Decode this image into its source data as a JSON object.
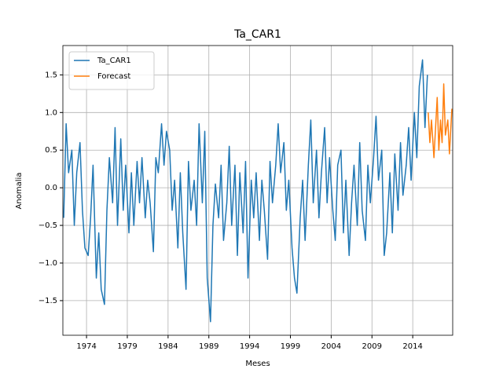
{
  "chart_data": {
    "type": "line",
    "title": "Ta_CAR1",
    "x_label": "Meses",
    "y_label": "Anomalia",
    "xlim": [
      1971.1,
      2018.9
    ],
    "xticks": [
      1974,
      1979,
      1984,
      1989,
      1994,
      1999,
      2004,
      2009,
      2014
    ],
    "ylim": [
      -1.96,
      1.89
    ],
    "yticks": [
      {
        "value": -1.5,
        "label": "−1.5"
      },
      {
        "value": -1.0,
        "label": "−1.0"
      },
      {
        "value": -0.5,
        "label": "−0.5"
      },
      {
        "value": 0.0,
        "label": "0.0"
      },
      0.5,
      {
        "value": 1.0,
        "label": "1.0"
      },
      1.5
    ],
    "grid": true,
    "legend": "upper left",
    "series": [
      {
        "name": "Ta_CAR1",
        "color": "#1f77b4",
        "x": [
          1971.2,
          1971.5,
          1971.8,
          1972.2,
          1972.5,
          1972.8,
          1973.2,
          1973.5,
          1973.8,
          1974.2,
          1974.5,
          1974.8,
          1975.2,
          1975.5,
          1975.8,
          1976.2,
          1976.5,
          1976.8,
          1977.2,
          1977.5,
          1977.8,
          1978.2,
          1978.5,
          1978.8,
          1979.2,
          1979.5,
          1979.8,
          1980.2,
          1980.5,
          1980.8,
          1981.2,
          1981.5,
          1981.8,
          1982.2,
          1982.5,
          1982.8,
          1983.2,
          1983.5,
          1983.8,
          1984.2,
          1984.5,
          1984.8,
          1985.2,
          1985.5,
          1985.8,
          1986.2,
          1986.5,
          1986.8,
          1987.2,
          1987.5,
          1987.8,
          1988.2,
          1988.5,
          1988.8,
          1989.2,
          1989.5,
          1989.8,
          1990.2,
          1990.5,
          1990.8,
          1991.2,
          1991.5,
          1991.8,
          1992.2,
          1992.5,
          1992.8,
          1993.2,
          1993.5,
          1993.8,
          1994.2,
          1994.5,
          1994.8,
          1995.2,
          1995.5,
          1995.8,
          1996.2,
          1996.5,
          1996.8,
          1997.2,
          1997.5,
          1997.8,
          1998.2,
          1998.5,
          1998.8,
          1999.2,
          1999.5,
          1999.8,
          2000.2,
          2000.5,
          2000.8,
          2001.2,
          2001.5,
          2001.8,
          2002.2,
          2002.5,
          2002.8,
          2003.2,
          2003.5,
          2003.8,
          2004.2,
          2004.5,
          2004.8,
          2005.2,
          2005.5,
          2005.8,
          2006.2,
          2006.5,
          2006.8,
          2007.2,
          2007.5,
          2007.8,
          2008.2,
          2008.5,
          2008.8,
          2009.2,
          2009.5,
          2009.8,
          2010.2,
          2010.5,
          2010.8,
          2011.2,
          2011.5,
          2011.8,
          2012.2,
          2012.5,
          2012.8,
          2013.2,
          2013.5,
          2013.8,
          2014.2,
          2014.5,
          2014.8,
          2015.2,
          2015.5,
          2015.8
        ],
        "values": [
          -0.4,
          0.85,
          0.2,
          0.5,
          -0.5,
          0.2,
          0.6,
          -0.3,
          -0.8,
          -0.9,
          -0.4,
          0.3,
          -1.2,
          -0.6,
          -1.35,
          -1.55,
          -0.3,
          0.4,
          -0.2,
          0.8,
          -0.5,
          0.65,
          -0.3,
          0.3,
          -0.6,
          0.2,
          -0.5,
          0.35,
          -0.2,
          0.4,
          -0.4,
          0.1,
          -0.2,
          -0.85,
          0.4,
          0.2,
          0.85,
          0.3,
          0.75,
          0.5,
          -0.3,
          0.1,
          -0.8,
          0.2,
          -0.6,
          -1.35,
          0.35,
          -0.3,
          0.1,
          -0.5,
          0.85,
          -0.2,
          0.75,
          -1.2,
          -1.78,
          -0.5,
          0.05,
          -0.4,
          0.3,
          -0.7,
          -0.2,
          0.55,
          -0.5,
          0.3,
          -0.9,
          0.2,
          -0.6,
          0.35,
          -1.2,
          0.1,
          -0.4,
          0.2,
          -0.7,
          0.1,
          -0.3,
          -0.95,
          0.35,
          -0.2,
          0.3,
          0.85,
          0.2,
          0.6,
          -0.3,
          0.1,
          -0.8,
          -1.2,
          -1.4,
          -0.4,
          0.1,
          -0.7,
          0.3,
          0.9,
          -0.2,
          0.5,
          -0.4,
          0.2,
          0.8,
          -0.2,
          0.4,
          -0.3,
          -0.7,
          0.3,
          0.5,
          -0.6,
          0.1,
          -0.9,
          -0.2,
          0.3,
          -0.5,
          0.6,
          -0.3,
          -0.7,
          0.3,
          -0.2,
          0.4,
          0.95,
          0.1,
          0.5,
          -0.9,
          -0.6,
          0.2,
          -0.6,
          0.45,
          -0.3,
          0.6,
          -0.1,
          0.3,
          0.8,
          0.1,
          1.0,
          0.4,
          1.35,
          1.7,
          0.8,
          1.5
        ]
      },
      {
        "name": "Forecast",
        "color": "#ff7f0e",
        "x": [
          2015.9,
          2016.1,
          2016.3,
          2016.6,
          2016.8,
          2017.0,
          2017.2,
          2017.4,
          2017.6,
          2017.8,
          2018.0,
          2018.3,
          2018.5,
          2018.8
        ],
        "values": [
          1.0,
          0.6,
          0.9,
          0.4,
          0.8,
          1.2,
          0.5,
          0.9,
          0.6,
          1.38,
          0.7,
          0.9,
          0.45,
          1.05
        ]
      }
    ]
  }
}
